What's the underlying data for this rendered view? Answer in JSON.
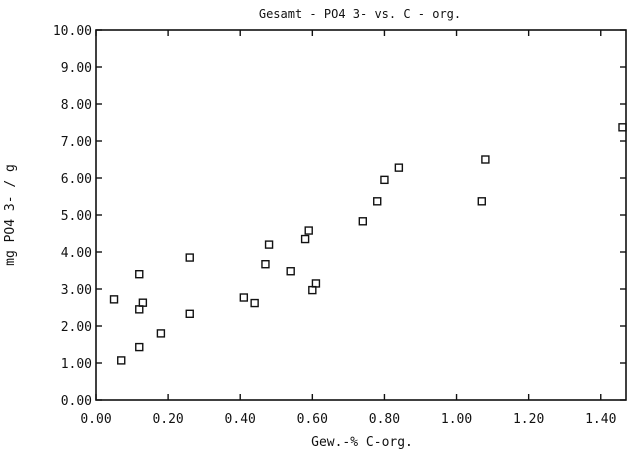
{
  "chart_data": {
    "type": "scatter",
    "title": "Gesamt - PO4 3- vs. C - org.",
    "xlabel": "Gew.-% C-org.",
    "ylabel": "mg PO4 3- / g",
    "xlim": [
      0.0,
      1.47
    ],
    "ylim": [
      0.0,
      10.0
    ],
    "xticks": [
      "0.00",
      "0.20",
      "0.40",
      "0.60",
      "0.80",
      "1.00",
      "1.20",
      "1.40"
    ],
    "yticks": [
      "0.00",
      "1.00",
      "2.00",
      "3.00",
      "4.00",
      "5.00",
      "6.00",
      "7.00",
      "8.00",
      "9.00",
      "10.00"
    ],
    "grid": false,
    "legend": "none",
    "points": [
      {
        "x": 0.05,
        "y": 2.72
      },
      {
        "x": 0.07,
        "y": 1.07
      },
      {
        "x": 0.12,
        "y": 3.4
      },
      {
        "x": 0.12,
        "y": 2.45
      },
      {
        "x": 0.12,
        "y": 1.43
      },
      {
        "x": 0.13,
        "y": 2.63
      },
      {
        "x": 0.18,
        "y": 1.8
      },
      {
        "x": 0.26,
        "y": 3.85
      },
      {
        "x": 0.26,
        "y": 2.33
      },
      {
        "x": 0.41,
        "y": 2.77
      },
      {
        "x": 0.44,
        "y": 2.62
      },
      {
        "x": 0.47,
        "y": 3.67
      },
      {
        "x": 0.48,
        "y": 4.2
      },
      {
        "x": 0.54,
        "y": 3.48
      },
      {
        "x": 0.58,
        "y": 4.35
      },
      {
        "x": 0.59,
        "y": 4.58
      },
      {
        "x": 0.6,
        "y": 2.97
      },
      {
        "x": 0.61,
        "y": 3.15
      },
      {
        "x": 0.74,
        "y": 4.83
      },
      {
        "x": 0.78,
        "y": 5.37
      },
      {
        "x": 0.8,
        "y": 5.95
      },
      {
        "x": 0.84,
        "y": 6.28
      },
      {
        "x": 1.07,
        "y": 5.37
      },
      {
        "x": 1.08,
        "y": 6.5
      },
      {
        "x": 1.48,
        "y": 7.37
      }
    ]
  }
}
